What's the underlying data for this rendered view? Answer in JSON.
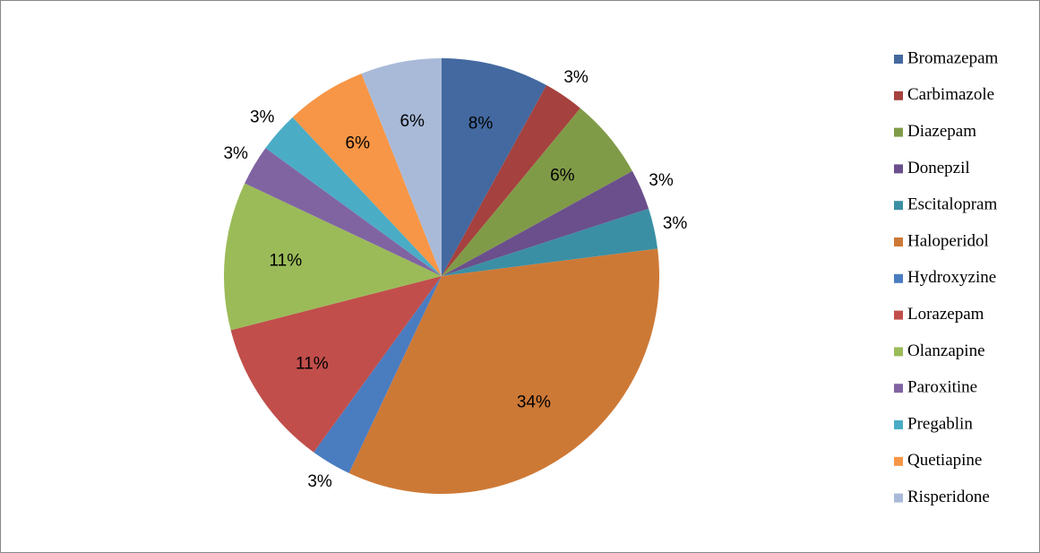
{
  "chart_data": {
    "type": "pie",
    "categories": [
      "Bromazepam",
      "Carbimazole",
      "Diazepam",
      "Donepzil",
      "Escitalopram",
      "Haloperidol",
      "Hydroxyzine",
      "Lorazepam",
      "Olanzapine",
      "Paroxitine",
      "Pregablin",
      "Quetiapine",
      "Risperidone"
    ],
    "values": [
      8,
      3,
      6,
      3,
      3,
      34,
      3,
      11,
      11,
      3,
      3,
      6,
      6
    ],
    "value_labels": [
      "8%",
      "3%",
      "6%",
      "3%",
      "3%",
      "34%",
      "3%",
      "11%",
      "11%",
      "3%",
      "3%",
      "6%",
      "6%"
    ],
    "colors": [
      "#4369a0",
      "#a5413e",
      "#809b48",
      "#6a4f8c",
      "#3b8fa4",
      "#cd7936",
      "#4a7cc0",
      "#c14e4b",
      "#9bbb59",
      "#8064a2",
      "#4bacc6",
      "#f79646",
      "#a9bad9"
    ],
    "legend": "right"
  }
}
